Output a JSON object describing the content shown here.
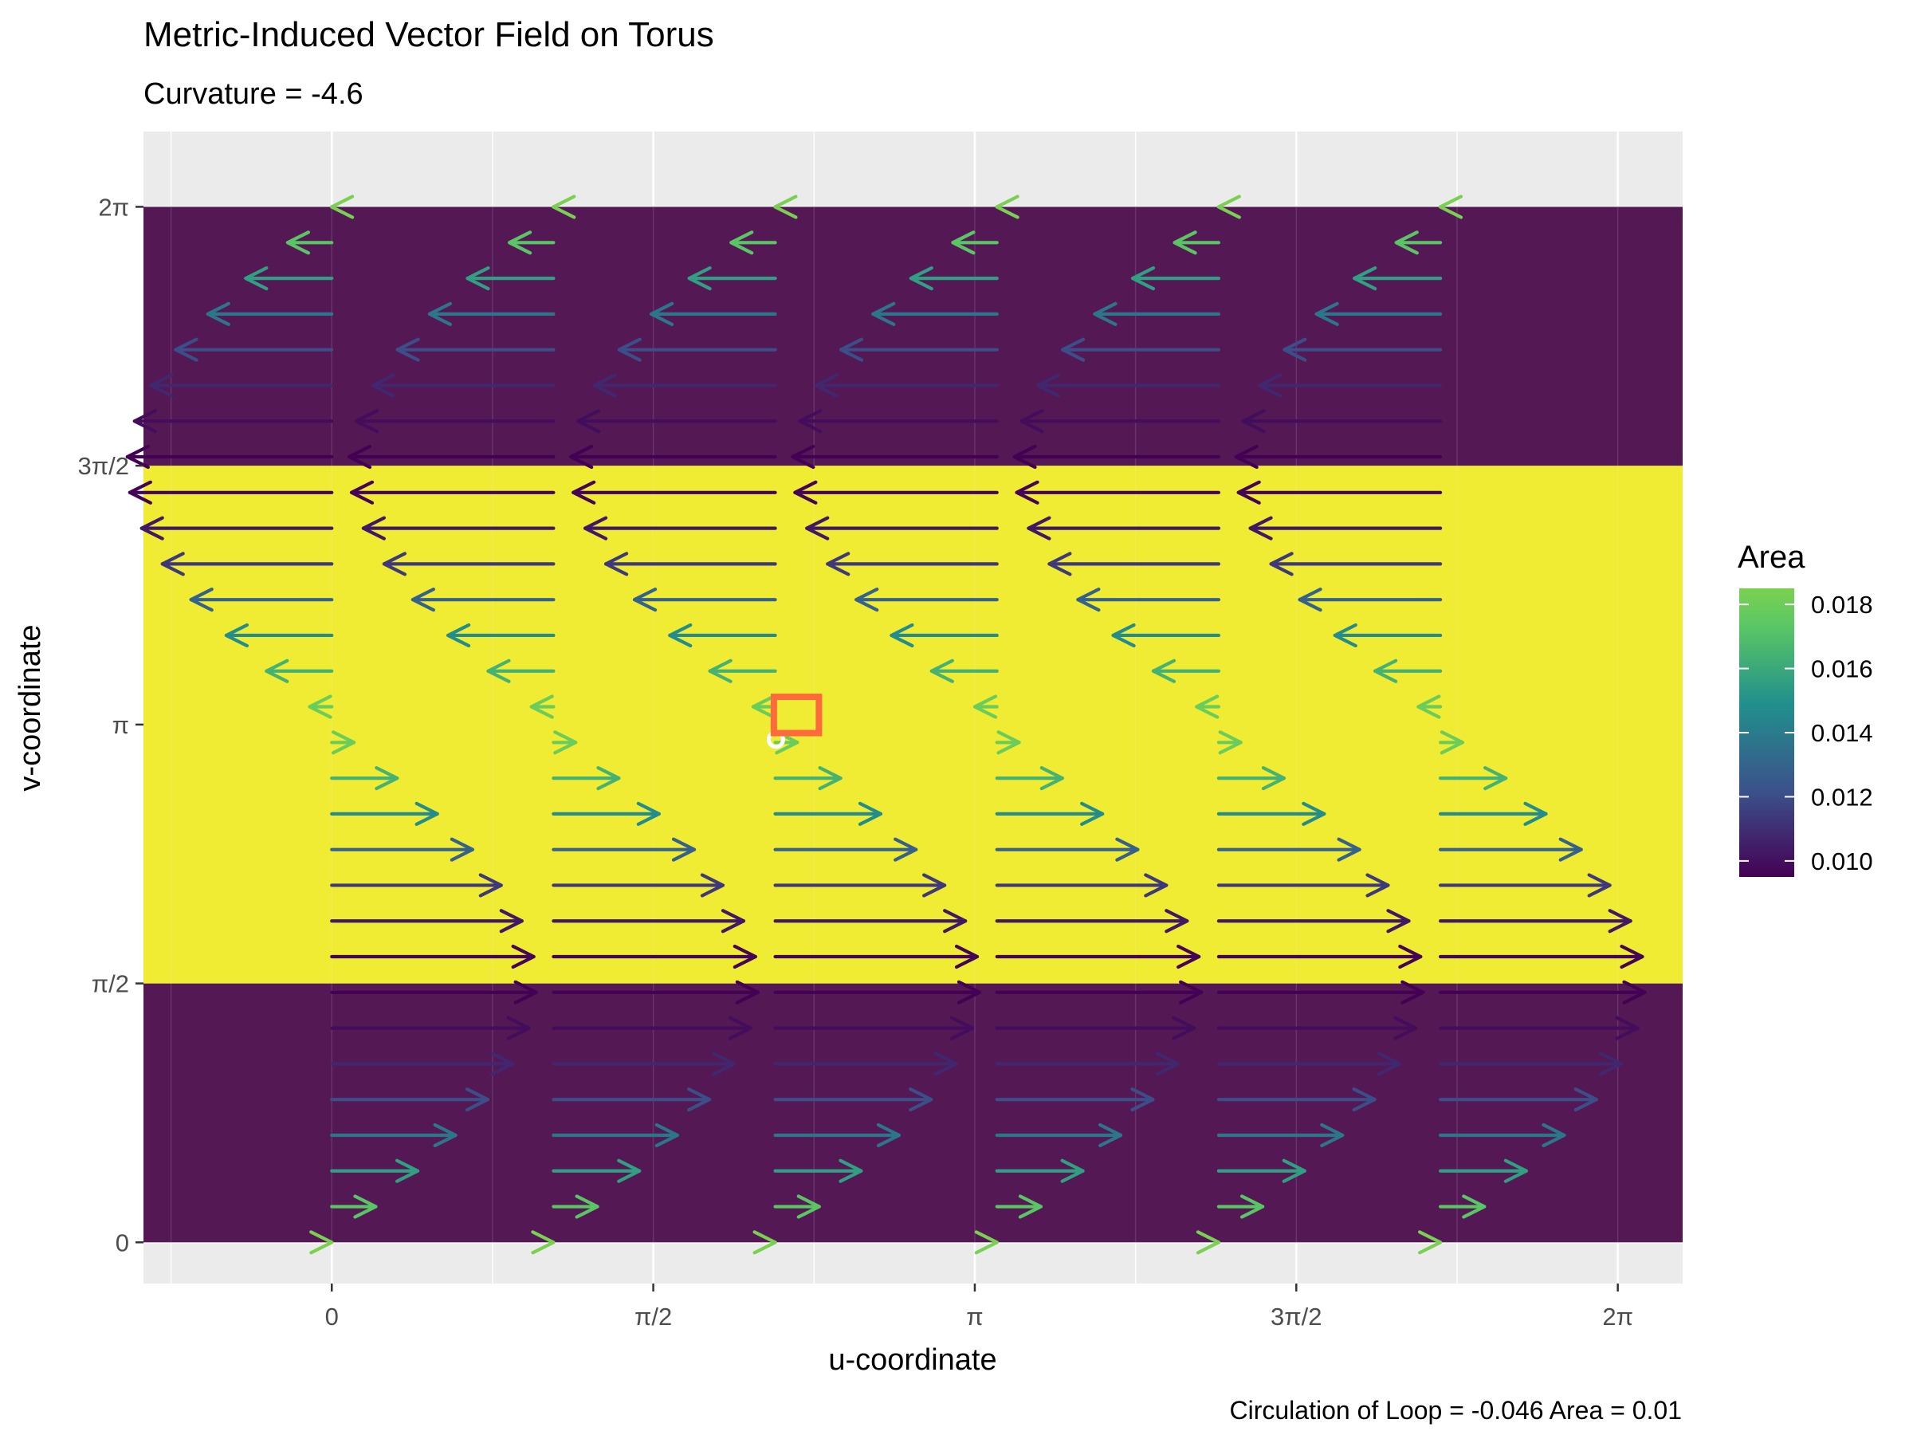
{
  "chart_data": {
    "type": "vector-field",
    "title": "Metric-Induced Vector Field on Torus",
    "subtitle": "Curvature =  -4.6",
    "xlabel": "u-coordinate",
    "ylabel": "v-coordinate",
    "caption": "Circulation of Loop  =  -0.046   Area =  0.01",
    "xlim": [
      -0.92,
      6.6
    ],
    "ylim": [
      -0.25,
      6.74
    ],
    "x_ticks": [
      {
        "value": 0,
        "label": "0"
      },
      {
        "value": 1.5708,
        "label": "π/2"
      },
      {
        "value": 3.1416,
        "label": "π"
      },
      {
        "value": 4.7124,
        "label": "3π/2"
      },
      {
        "value": 6.2832,
        "label": "2π"
      }
    ],
    "y_ticks": [
      {
        "value": 0,
        "label": "0"
      },
      {
        "value": 1.5708,
        "label": "π/2"
      },
      {
        "value": 3.1416,
        "label": "π"
      },
      {
        "value": 4.7124,
        "label": "3π/2"
      },
      {
        "value": 6.2832,
        "label": "2π"
      }
    ],
    "grid": true,
    "background_bands": [
      {
        "ymin": 0,
        "ymax": 1.5708,
        "color": "#4e114f"
      },
      {
        "ymin": 1.5708,
        "ymax": 4.7124,
        "color": "#f0ea2c"
      },
      {
        "ymin": 4.7124,
        "ymax": 6.2832,
        "color": "#4e114f"
      }
    ],
    "vector_field": {
      "u_starts": [
        0,
        1.0833,
        2.1666,
        3.2499,
        4.3332,
        5.4165
      ],
      "v_values": [
        0,
        0.2166,
        0.4333,
        0.6499,
        0.8666,
        1.0833,
        1.2999,
        1.5166,
        1.7332,
        1.9498,
        2.1665,
        2.3831,
        2.5998,
        2.8164,
        3.0331,
        3.2497,
        3.4664,
        3.683,
        3.8996,
        4.1163,
        4.3329,
        4.5496,
        4.7662,
        4.9829,
        5.1995,
        5.4161,
        5.6328,
        5.8494,
        6.0661,
        6.2827
      ],
      "length_formula": "sin(v) * 1.0",
      "color_scale": {
        "min": 0.0095,
        "max": 0.0185,
        "colors": [
          "#440154",
          "#3b528b",
          "#21908c",
          "#5dc863",
          "#7ad151"
        ]
      }
    },
    "markers": [
      {
        "type": "circle",
        "u": 2.17,
        "v": 3.05,
        "color": "#ffffff"
      },
      {
        "type": "square",
        "u": 2.27,
        "v": 3.2,
        "half_size": 0.11,
        "color": "#ff6a3d"
      }
    ],
    "legend": {
      "title": "Area",
      "labels": [
        "0.018",
        "0.016",
        "0.014",
        "0.012",
        "0.010"
      ],
      "values": [
        0.018,
        0.016,
        0.014,
        0.012,
        0.01
      ],
      "position": "right"
    }
  }
}
